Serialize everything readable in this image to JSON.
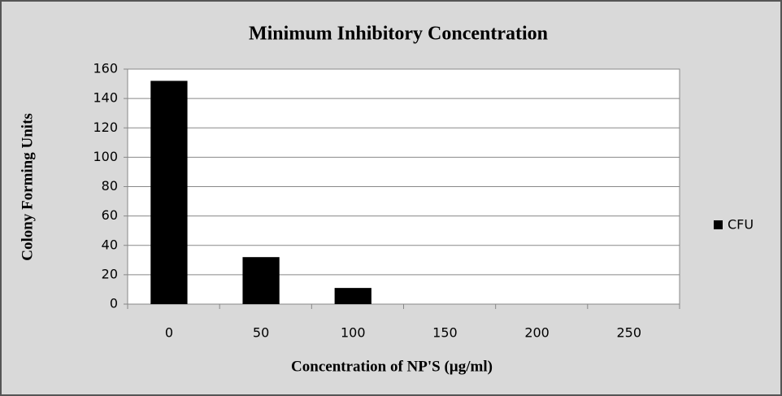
{
  "chart_data": {
    "type": "bar",
    "title": "Minimum Inhibitory Concentration",
    "x_label": "Concentration of NP'S (µg/ml)",
    "y_label": "Colony Forming Units",
    "categories": [
      "0",
      "50",
      "100",
      "150",
      "200",
      "250"
    ],
    "series": [
      {
        "name": "CFU",
        "color": "#000000",
        "values": [
          152,
          32,
          11,
          0,
          0,
          0
        ]
      }
    ],
    "ylim": [
      0,
      160
    ],
    "yticks": [
      0,
      20,
      40,
      60,
      80,
      100,
      120,
      140,
      160
    ],
    "grid": true,
    "legend": "right"
  }
}
